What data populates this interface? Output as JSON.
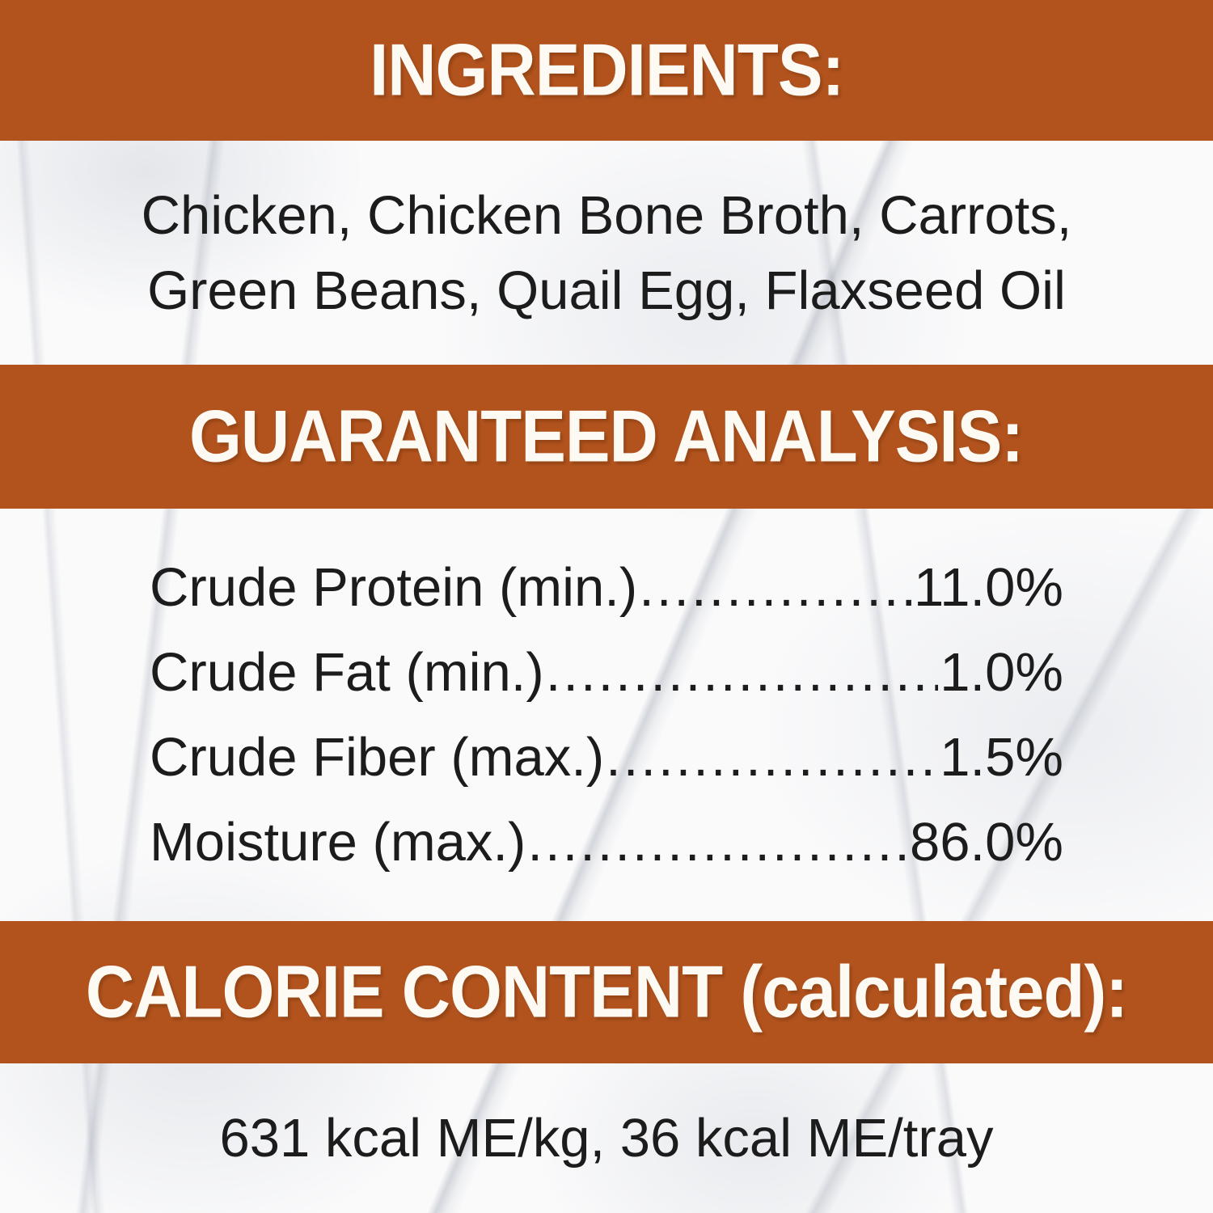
{
  "colors": {
    "banner_background": "#b2531e",
    "banner_text": "#fdfaf4",
    "body_text": "#1c1c1c"
  },
  "ingredients": {
    "heading": "INGREDIENTS:",
    "lines": [
      "Chicken, Chicken Bone Broth, Carrots,",
      "Green Beans, Quail Egg, Flaxseed Oil"
    ]
  },
  "guaranteed_analysis": {
    "heading": "GUARANTEED ANALYSIS:",
    "leader_dots": "................................................................................................",
    "rows": [
      {
        "label": "Crude Protein (min.)",
        "value": "11.0%"
      },
      {
        "label": "Crude Fat (min.)",
        "value": "1.0%"
      },
      {
        "label": "Crude Fiber (max.)",
        "value": "1.5%"
      },
      {
        "label": "Moisture (max.)",
        "value": "86.0%"
      }
    ]
  },
  "calorie_content": {
    "heading": "CALORIE CONTENT (calculated):",
    "text": "631 kcal ME/kg, 36 kcal ME/tray"
  }
}
